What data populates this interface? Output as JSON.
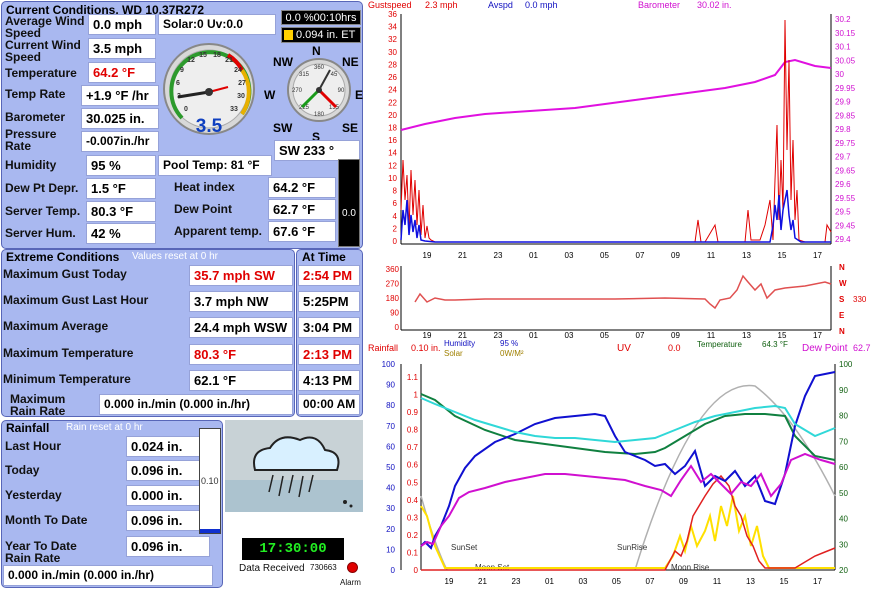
{
  "current": {
    "title": "Current Conditions, WD 10.37R272",
    "avg_wind_label": "Average Wind Speed",
    "avg_wind": "0.0 mph",
    "solar": "Solar:0 Uv:0.0",
    "cur_wind_label": "Current Wind Speed",
    "cur_wind": "3.5 mph",
    "temp_label": "Temperature",
    "temp": "64.2 °F",
    "temp_rate_label": "Temp Rate",
    "temp_rate": "+1.9 °F /hr",
    "baro_label": "Barometer",
    "baro": "30.025 in.",
    "press_rate_label": "Pressure Rate",
    "press_rate": "-0.007in./hr",
    "humidity_label": "Humidity",
    "humidity": "95 %",
    "pool": "Pool Temp: 81 °F",
    "dewdep_label": "Dew Pt Depr.",
    "dewdep": "1.5 °F",
    "heat_label": "Heat index",
    "heat": "64.2 °F",
    "server_temp_label": "Server Temp.",
    "server_temp": "80.3 °F",
    "dewpoint_label": "Dew Point",
    "dewpoint": "62.7 °F",
    "server_hum_label": "Server Hum.",
    "server_hum": "42 %",
    "apparent_label": "Apparent temp.",
    "apparent": "67.6 °F",
    "timer": "0.0 %00:10hrs",
    "et": "0.094 in. ET",
    "gauge_value": "3.5",
    "gauge_ticks": [
      "0",
      "3",
      "6",
      "9",
      "12",
      "15",
      "18",
      "21",
      "24",
      "27",
      "30",
      "33"
    ],
    "compass_n": "N",
    "compass_ne": "NE",
    "compass_nw": "NW",
    "compass_e": "E",
    "compass_w": "W",
    "compass_s": "S",
    "compass_se": "SE",
    "compass_sw": "SW",
    "compass_ticks": [
      "360",
      "45",
      "90",
      "135",
      "180",
      "225",
      "270",
      "315"
    ],
    "wind_dir": "SW  233 °",
    "bar_value": "0.0"
  },
  "extreme": {
    "title": "Extreme Conditions",
    "reset_note": "Values reset at 0 hr",
    "at_time": "At Time",
    "rows": [
      {
        "label": "Maximum Gust Today",
        "value": "35.7 mph  SW",
        "time": "2:54 PM",
        "red": true
      },
      {
        "label": "Maximum Gust Last Hour",
        "value": "3.7 mph  NW",
        "time": "5:25PM",
        "red": false
      },
      {
        "label": "Maximum Average",
        "value": "24.4 mph WSW",
        "time": "3:04 PM",
        "red": false
      },
      {
        "label": "Maximum Temperature",
        "value": "80.3 °F",
        "time": "2:13 PM",
        "red": true
      },
      {
        "label": "Minimum Temperature",
        "value": "62.1 °F",
        "time": "4:13 PM",
        "red": false
      }
    ],
    "rain_rate_label": "Maximum Rain Rate",
    "rain_rate_value": "0.000 in./min (0.000 in./hr)",
    "rain_rate_time": "00:00 AM"
  },
  "rain": {
    "title": "Rainfall",
    "reset_note": "Rain reset at 0 hr",
    "rows": [
      {
        "label": "Last Hour",
        "value": "0.024 in."
      },
      {
        "label": "Today",
        "value": "0.096 in."
      },
      {
        "label": "Yesterday",
        "value": "0.000 in."
      },
      {
        "label": "Month To Date",
        "value": "0.096 in."
      },
      {
        "label": "Year To Date",
        "value": "0.096 in."
      }
    ],
    "rate_label": "Rain Rate",
    "rate_value": "0.000 in./min (0.000 in./hr)",
    "bar_value": "0.10",
    "bar_fill": 0.04
  },
  "status": {
    "clock": "17:30:00",
    "data_received": "Data Received",
    "count": "730663",
    "alarm": "Alarm"
  },
  "chart1": {
    "gust_label": "Gustspeed",
    "gust": "2.3 mph",
    "avg_label": "Avspd",
    "avg": "0.0 mph",
    "baro_label": "Barometer",
    "baro": "30.02 in.",
    "left_ticks": [
      "36",
      "34",
      "32",
      "30",
      "28",
      "26",
      "24",
      "22",
      "20",
      "18",
      "16",
      "14",
      "12",
      "10",
      "8",
      "6",
      "4",
      "2",
      "0"
    ],
    "right_ticks": [
      "30.2",
      "30.15",
      "30.1",
      "30.05",
      "30",
      "29.95",
      "29.9",
      "29.85",
      "29.8",
      "29.75",
      "29.7",
      "29.65",
      "29.6",
      "29.55",
      "29.5",
      "29.45",
      "29.4"
    ],
    "x_ticks": [
      "19",
      "21",
      "23",
      "01",
      "03",
      "05",
      "07",
      "09",
      "11",
      "13",
      "15",
      "17"
    ]
  },
  "chart2": {
    "left_ticks": [
      "360",
      "270",
      "180",
      "90",
      "0"
    ],
    "dir_letters": [
      "N",
      "W",
      "S",
      "E",
      "N"
    ],
    "value": "330",
    "x_ticks": [
      "19",
      "21",
      "23",
      "01",
      "03",
      "05",
      "07",
      "09",
      "11",
      "13",
      "15",
      "17"
    ]
  },
  "chart3": {
    "rain_label": "Rainfall",
    "rain": "0.10 in.",
    "hum_label": "Humidity",
    "hum": "95 %",
    "solar_label": "Solar",
    "solar": "0W/M²",
    "uv_label": "UV",
    "uv": "0.0",
    "temp_label": "Temperature",
    "temp": "64.3 °F",
    "dew_label": "Dew Point",
    "dew": "62.7",
    "left_ticks": [
      "100",
      "90",
      "80",
      "70",
      "60",
      "50",
      "40",
      "30",
      "20",
      "10",
      "0"
    ],
    "mid_ticks": [
      "1.1",
      "1",
      "0.9",
      "0.8",
      "0.7",
      "0.6",
      "0.5",
      "0.4",
      "0.3",
      "0.2",
      "0.1",
      "0"
    ],
    "right_ticks": [
      "100",
      "90",
      "80",
      "70",
      "60",
      "50",
      "40",
      "30",
      "20"
    ],
    "sunset": "SunSet",
    "sunrise": "SunRise",
    "moonset": "Moon Set",
    "moonrise": "Moon Rise",
    "x_ticks": [
      "19",
      "21",
      "23",
      "01",
      "03",
      "05",
      "07",
      "09",
      "11",
      "13",
      "15",
      "17"
    ]
  }
}
